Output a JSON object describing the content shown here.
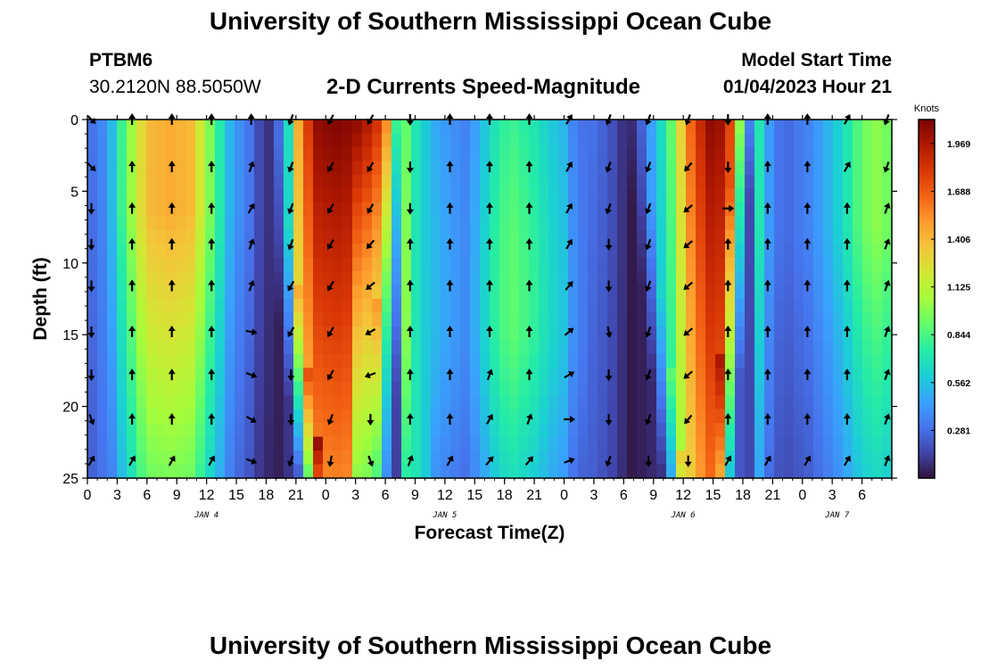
{
  "header": {
    "title_top": "University of Southern Mississippi Ocean Cube",
    "station": "PTBM6",
    "coords": "30.2120N  88.5050W",
    "subtitle": "2-D Currents Speed-Magnitude",
    "model_start_label": "Model Start Time",
    "model_start_value": "01/04/2023 Hour 21",
    "title_bottom": "University of Southern Mississippi Ocean Cube"
  },
  "chart_data": {
    "type": "heatmap",
    "title": "2-D Currents Speed-Magnitude",
    "xlabel": "Forecast Time(Z)",
    "ylabel": "Depth (ft)",
    "x_range_hours": [
      0,
      81
    ],
    "y_range_ft": [
      0,
      25
    ],
    "x_ticks": [
      {
        "h": 0,
        "label": "0"
      },
      {
        "h": 3,
        "label": "3"
      },
      {
        "h": 6,
        "label": "6"
      },
      {
        "h": 9,
        "label": "9"
      },
      {
        "h": 12,
        "label": "12"
      },
      {
        "h": 15,
        "label": "15"
      },
      {
        "h": 18,
        "label": "18"
      },
      {
        "h": 21,
        "label": "21"
      },
      {
        "h": 24,
        "label": "0"
      },
      {
        "h": 27,
        "label": "3"
      },
      {
        "h": 30,
        "label": "6"
      },
      {
        "h": 33,
        "label": "9"
      },
      {
        "h": 36,
        "label": "12"
      },
      {
        "h": 39,
        "label": "15"
      },
      {
        "h": 42,
        "label": "18"
      },
      {
        "h": 45,
        "label": "21"
      },
      {
        "h": 48,
        "label": "0"
      },
      {
        "h": 51,
        "label": "3"
      },
      {
        "h": 54,
        "label": "6"
      },
      {
        "h": 57,
        "label": "9"
      },
      {
        "h": 60,
        "label": "12"
      },
      {
        "h": 63,
        "label": "15"
      },
      {
        "h": 66,
        "label": "18"
      },
      {
        "h": 69,
        "label": "21"
      },
      {
        "h": 72,
        "label": "0"
      },
      {
        "h": 75,
        "label": "3"
      },
      {
        "h": 78,
        "label": "6"
      }
    ],
    "day_labels": [
      {
        "h": 12,
        "label": "JAN 4"
      },
      {
        "h": 36,
        "label": "JAN 5"
      },
      {
        "h": 60,
        "label": "JAN 6"
      },
      {
        "h": 75.5,
        "label": "JAN 7"
      }
    ],
    "y_ticks": [
      0,
      5,
      10,
      15,
      20,
      25
    ],
    "colorbar": {
      "unit_label": "Knots",
      "min": 0.0,
      "max": 2.11,
      "tick_values": [
        0.281,
        0.562,
        0.844,
        1.125,
        1.406,
        1.688,
        1.969
      ],
      "tick_labels": [
        "0.281",
        "0.562",
        "0.844",
        "1.125",
        "1.406",
        "1.688",
        "1.969"
      ]
    },
    "colormap": [
      "#30123b",
      "#4145ab",
      "#4675ed",
      "#39a2fc",
      "#1bcfd4",
      "#24eca6",
      "#61fc6c",
      "#a4fc3b",
      "#d1e834",
      "#f3c63a",
      "#fe9b2d",
      "#f36315",
      "#d93806",
      "#b11901",
      "#7a0402"
    ],
    "speed_field": {
      "description": "approximate current speed (knots) by forecast hour; depth profile factors applied per hour",
      "hours": [
        0,
        0.9,
        2.2,
        3.2,
        4.5,
        6,
        8.5,
        10.5,
        12.2,
        13.3,
        14.6,
        16.6,
        18,
        19.2,
        20.3,
        21.3,
        23,
        25,
        27.5,
        29.5,
        30.6,
        31.6,
        33,
        34.5,
        36,
        38,
        39.3,
        40.5,
        41.6,
        43,
        44.8,
        46.5,
        48,
        49,
        50.6,
        52.5,
        53.8,
        54.8,
        56,
        58.5,
        60.5,
        62.5,
        63.6,
        64.6,
        66,
        67.4,
        68.5,
        70,
        71.2,
        72.6,
        74.5,
        76,
        77.5,
        78.5,
        79.5,
        80.4,
        81
      ],
      "speeds": [
        0.3,
        0.3,
        0.45,
        0.75,
        1.05,
        1.4,
        1.45,
        1.4,
        1.0,
        0.75,
        0.45,
        0.28,
        0.05,
        0.25,
        0.7,
        1.5,
        2.05,
        2.1,
        2.05,
        1.8,
        1.5,
        1.2,
        0.8,
        0.6,
        0.5,
        0.4,
        0.55,
        0.75,
        0.9,
        0.95,
        0.85,
        0.7,
        0.6,
        0.4,
        0.3,
        0.22,
        0.1,
        0.15,
        0.3,
        0.8,
        1.6,
        2.05,
        2.05,
        1.8,
        1.3,
        0.8,
        0.45,
        0.25,
        0.3,
        0.35,
        0.5,
        0.65,
        0.85,
        0.95,
        1.0,
        0.95,
        0.9
      ]
    },
    "current_vectors": {
      "note": "arrow direction in compass degrees (0 = north/up) per column; rows at depth_rows ft",
      "depth_rows": [
        0,
        3.3,
        6.2,
        8.7,
        11.6,
        14.8,
        17.8,
        20.9,
        23.8
      ],
      "columns": [
        {
          "h": 0.4,
          "dirs": [
            135,
            135,
            180,
            180,
            180,
            180,
            180,
            160,
            30
          ]
        },
        {
          "h": 4.5,
          "dirs": [
            0,
            0,
            0,
            0,
            0,
            0,
            0,
            0,
            30
          ]
        },
        {
          "h": 8.5,
          "dirs": [
            0,
            0,
            0,
            0,
            0,
            0,
            0,
            0,
            30
          ]
        },
        {
          "h": 12.5,
          "dirs": [
            0,
            0,
            0,
            0,
            0,
            0,
            0,
            0,
            30
          ]
        },
        {
          "h": 16.5,
          "dirs": [
            0,
            20,
            30,
            20,
            20,
            100,
            110,
            120,
            110
          ]
        },
        {
          "h": 20.5,
          "dirs": [
            200,
            200,
            200,
            200,
            210,
            210,
            180,
            180,
            200
          ]
        },
        {
          "h": 24.5,
          "dirs": [
            210,
            210,
            210,
            210,
            210,
            210,
            210,
            200,
            190
          ]
        },
        {
          "h": 28.5,
          "dirs": [
            210,
            210,
            210,
            220,
            230,
            240,
            250,
            180,
            160
          ]
        },
        {
          "h": 32.5,
          "dirs": [
            180,
            180,
            180,
            0,
            0,
            0,
            0,
            0,
            20
          ]
        },
        {
          "h": 36.5,
          "dirs": [
            0,
            0,
            0,
            0,
            0,
            0,
            0,
            0,
            30
          ]
        },
        {
          "h": 40.5,
          "dirs": [
            0,
            0,
            0,
            0,
            0,
            0,
            20,
            30,
            40
          ]
        },
        {
          "h": 44.5,
          "dirs": [
            0,
            0,
            0,
            0,
            0,
            0,
            0,
            20,
            40
          ]
        },
        {
          "h": 48.5,
          "dirs": [
            30,
            30,
            30,
            30,
            40,
            50,
            60,
            90,
            70
          ]
        },
        {
          "h": 52.5,
          "dirs": [
            200,
            200,
            200,
            180,
            180,
            170,
            180,
            180,
            200
          ]
        },
        {
          "h": 56.5,
          "dirs": [
            200,
            200,
            200,
            200,
            200,
            200,
            200,
            200,
            180
          ]
        },
        {
          "h": 60.5,
          "dirs": [
            200,
            220,
            230,
            230,
            230,
            230,
            230,
            220,
            180
          ]
        },
        {
          "h": 64.5,
          "dirs": [
            180,
            180,
            90,
            0,
            0,
            0,
            0,
            0,
            30
          ]
        },
        {
          "h": 68.5,
          "dirs": [
            0,
            0,
            0,
            0,
            0,
            0,
            0,
            0,
            30
          ]
        },
        {
          "h": 72.5,
          "dirs": [
            0,
            0,
            0,
            0,
            0,
            0,
            0,
            0,
            30
          ]
        },
        {
          "h": 76.5,
          "dirs": [
            30,
            30,
            0,
            0,
            0,
            0,
            0,
            0,
            30
          ]
        },
        {
          "h": 80.5,
          "dirs": [
            200,
            200,
            20,
            20,
            20,
            20,
            20,
            20,
            20
          ]
        }
      ]
    }
  }
}
